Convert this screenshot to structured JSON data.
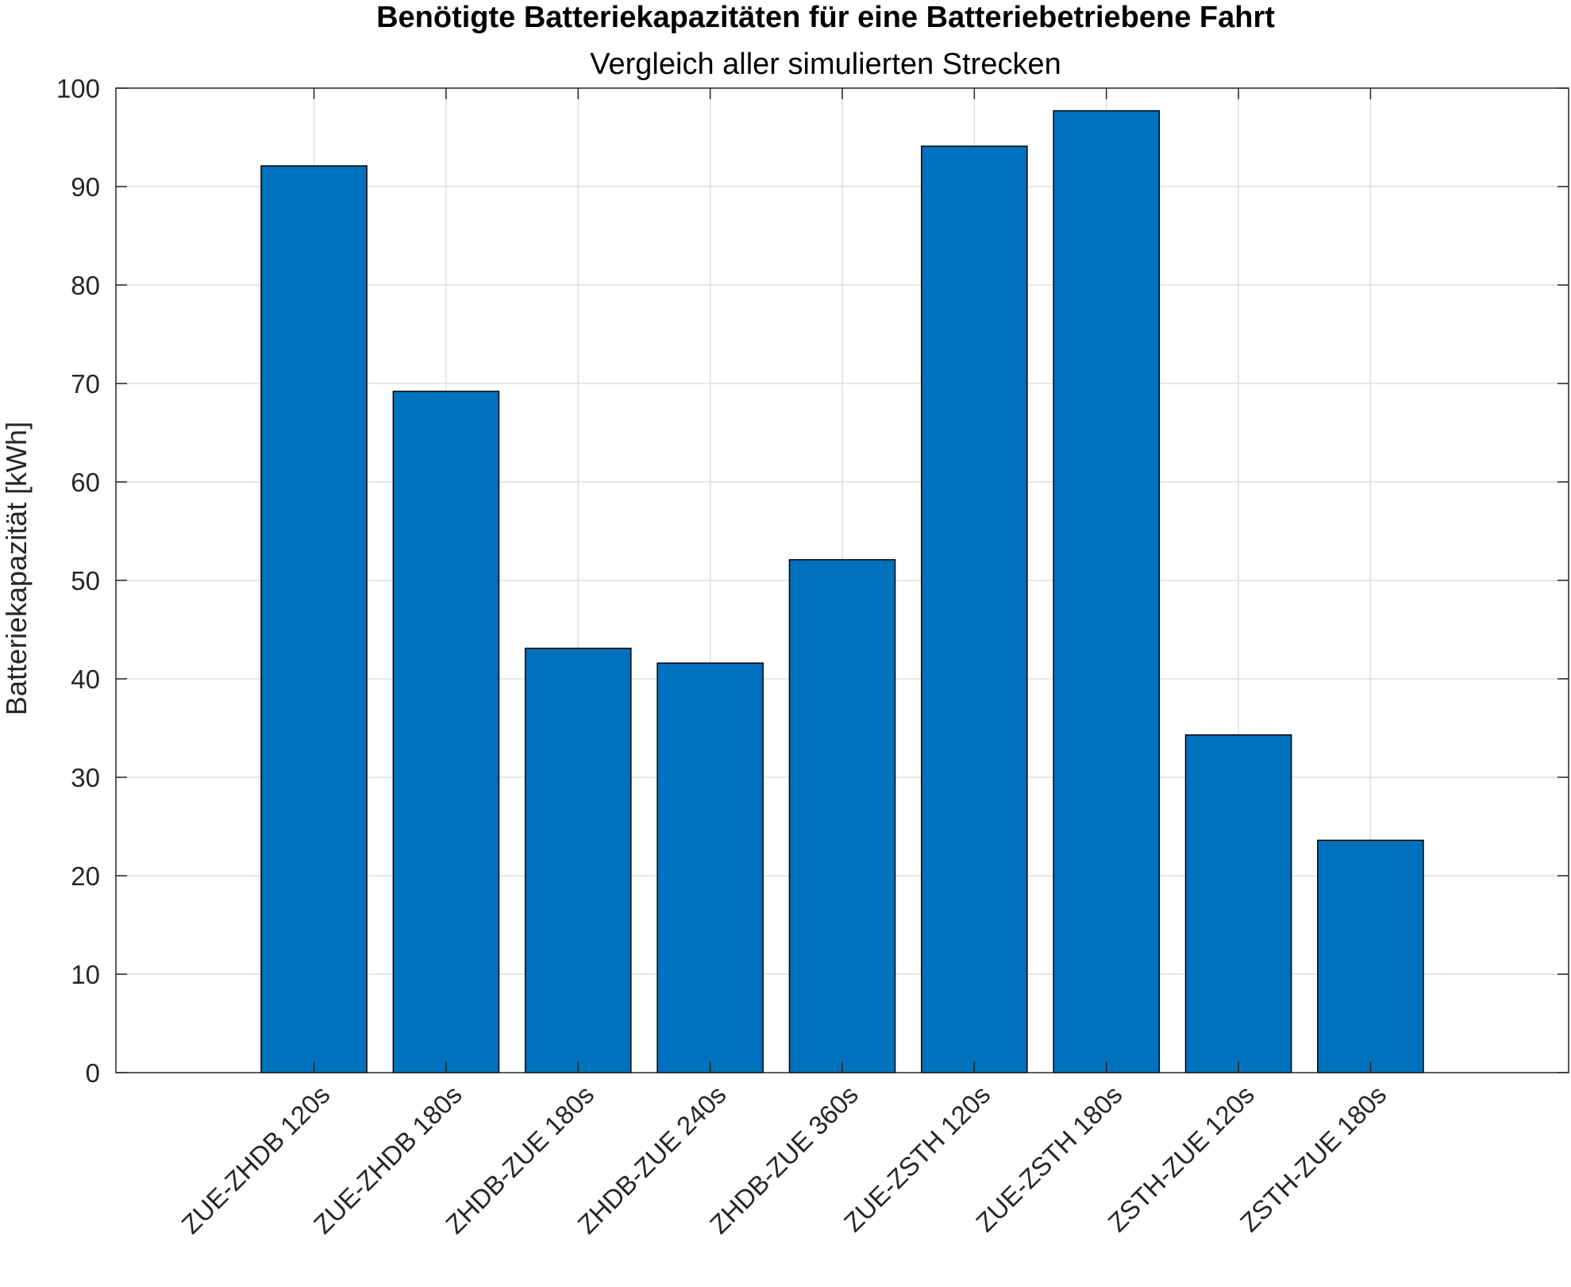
{
  "chart_data": {
    "type": "bar",
    "title": "Benötigte Batteriekapazitäten für eine Batteriebetriebene Fahrt",
    "subtitle": "Vergleich aller simulierten Strecken",
    "ylabel": "Batteriekapazität [kWh]",
    "xlabel": "",
    "categories": [
      "ZUE-ZHDB 120s",
      "ZUE-ZHDB 180s",
      "ZHDB-ZUE 180s",
      "ZHDB-ZUE 240s",
      "ZHDB-ZUE 360s",
      "ZUE-ZSTH 120s",
      "ZUE-ZSTH 180s",
      "ZSTH-ZUE 120s",
      "ZSTH-ZUE 180s"
    ],
    "values": [
      92.1,
      69.2,
      43.1,
      41.6,
      52.1,
      94.1,
      97.7,
      34.3,
      23.6
    ],
    "ylim": [
      0,
      100
    ],
    "yticks": [
      0,
      10,
      20,
      30,
      40,
      50,
      60,
      70,
      80,
      90,
      100
    ],
    "grid": true,
    "bar_color": "#0072BD"
  }
}
